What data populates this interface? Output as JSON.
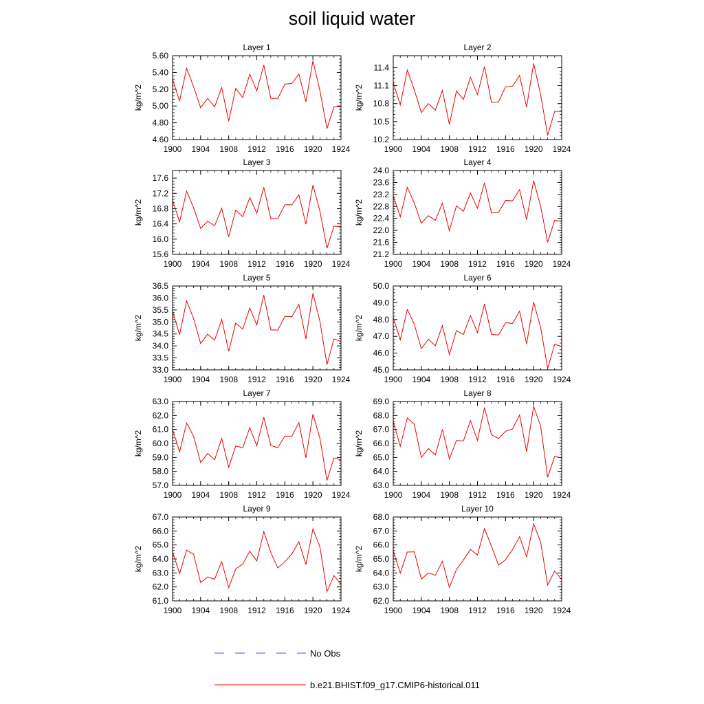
{
  "figure": {
    "title": "soil liquid water"
  },
  "legend": {
    "entries": [
      {
        "label": "No Obs",
        "style": "dashed",
        "color": "#4455cc"
      },
      {
        "label": "b.e21.BHIST.f09_g17.CMIP6-historical.011",
        "style": "solid",
        "color": "#ee0000"
      }
    ]
  },
  "chart_data": [
    {
      "type": "line",
      "title": "Layer 1",
      "ylabel": "kg/m^2",
      "ylim": [
        4.6,
        5.6
      ],
      "yticks": [
        4.6,
        4.8,
        5.0,
        5.2,
        5.4,
        5.6
      ],
      "ytick_labels": [
        "4.60",
        "4.80",
        "5.00",
        "5.20",
        "5.40",
        "5.60"
      ],
      "xlim": [
        1900,
        1924
      ],
      "xticks": [
        1900,
        1904,
        1908,
        1912,
        1916,
        1920,
        1924
      ],
      "xtick_labels": [
        "1900",
        "1904",
        "1908",
        "1912",
        "1916",
        "1920",
        "1924"
      ],
      "x": [
        1900,
        1901,
        1902,
        1903,
        1904,
        1905,
        1906,
        1907,
        1908,
        1909,
        1910,
        1911,
        1912,
        1913,
        1914,
        1915,
        1916,
        1917,
        1918,
        1919,
        1920,
        1921,
        1922,
        1923,
        1924
      ],
      "series": [
        {
          "name": "b.e21.BHIST.f09_g17.CMIP6-historical.011",
          "color": "#ee0000",
          "values": [
            5.32,
            5.06,
            5.45,
            5.23,
            4.98,
            5.09,
            4.99,
            5.22,
            4.82,
            5.21,
            5.1,
            5.38,
            5.18,
            5.49,
            5.09,
            5.09,
            5.26,
            5.27,
            5.38,
            5.05,
            5.54,
            5.18,
            4.73,
            4.99,
            4.99
          ]
        }
      ]
    },
    {
      "type": "line",
      "title": "Layer 2",
      "ylabel": "kg/m^2",
      "ylim": [
        10.2,
        11.6
      ],
      "yticks": [
        10.2,
        10.5,
        10.8,
        11.1,
        11.4
      ],
      "ytick_labels": [
        "10.2",
        "10.5",
        "10.8",
        "11.1",
        "11.4"
      ],
      "xlim": [
        1900,
        1924
      ],
      "xticks": [
        1900,
        1904,
        1908,
        1912,
        1916,
        1920,
        1924
      ],
      "xtick_labels": [
        "1900",
        "1904",
        "1908",
        "1912",
        "1916",
        "1920",
        "1924"
      ],
      "x": [
        1900,
        1901,
        1902,
        1903,
        1904,
        1905,
        1906,
        1907,
        1908,
        1909,
        1910,
        1911,
        1912,
        1913,
        1914,
        1915,
        1916,
        1917,
        1918,
        1919,
        1920,
        1921,
        1922,
        1923,
        1924
      ],
      "series": [
        {
          "name": "b.e21.BHIST.f09_g17.CMIP6-historical.011",
          "color": "#ee0000",
          "values": [
            11.15,
            10.78,
            11.36,
            11.03,
            10.65,
            10.8,
            10.69,
            11.02,
            10.45,
            11.01,
            10.87,
            11.24,
            10.95,
            11.42,
            10.82,
            10.83,
            11.08,
            11.09,
            11.27,
            10.74,
            11.47,
            10.95,
            10.27,
            10.67,
            10.67
          ]
        }
      ]
    },
    {
      "type": "line",
      "title": "Layer 3",
      "ylabel": "kg/m^2",
      "ylim": [
        15.6,
        17.8
      ],
      "yticks": [
        15.6,
        16.0,
        16.4,
        16.8,
        17.2,
        17.6
      ],
      "ytick_labels": [
        "15.6",
        "16.0",
        "16.4",
        "16.8",
        "17.2",
        "17.6"
      ],
      "xlim": [
        1900,
        1924
      ],
      "xticks": [
        1900,
        1904,
        1908,
        1912,
        1916,
        1920,
        1924
      ],
      "xtick_labels": [
        "1900",
        "1904",
        "1908",
        "1912",
        "1916",
        "1920",
        "1924"
      ],
      "x": [
        1900,
        1901,
        1902,
        1903,
        1904,
        1905,
        1906,
        1907,
        1908,
        1909,
        1910,
        1911,
        1912,
        1913,
        1914,
        1915,
        1916,
        1917,
        1918,
        1919,
        1920,
        1921,
        1922,
        1923,
        1924
      ],
      "series": [
        {
          "name": "b.e21.BHIST.f09_g17.CMIP6-historical.011",
          "color": "#ee0000",
          "values": [
            17.02,
            16.45,
            17.26,
            16.82,
            16.28,
            16.47,
            16.35,
            16.81,
            16.06,
            16.76,
            16.59,
            17.09,
            16.68,
            17.36,
            16.53,
            16.54,
            16.9,
            16.9,
            17.16,
            16.39,
            17.42,
            16.73,
            15.76,
            16.34,
            16.33
          ]
        }
      ]
    },
    {
      "type": "line",
      "title": "Layer 4",
      "ylabel": "kg/m^2",
      "ylim": [
        21.2,
        24.0
      ],
      "yticks": [
        21.2,
        21.6,
        22.0,
        22.4,
        22.8,
        23.2,
        23.6,
        24.0
      ],
      "ytick_labels": [
        "21.2",
        "21.6",
        "22.0",
        "22.4",
        "22.8",
        "23.2",
        "23.6",
        "24.0"
      ],
      "xlim": [
        1900,
        1924
      ],
      "xticks": [
        1900,
        1904,
        1908,
        1912,
        1916,
        1920,
        1924
      ],
      "xtick_labels": [
        "1900",
        "1904",
        "1908",
        "1912",
        "1916",
        "1920",
        "1924"
      ],
      "x": [
        1900,
        1901,
        1902,
        1903,
        1904,
        1905,
        1906,
        1907,
        1908,
        1909,
        1910,
        1911,
        1912,
        1913,
        1914,
        1915,
        1916,
        1917,
        1918,
        1919,
        1920,
        1921,
        1922,
        1923,
        1924
      ],
      "series": [
        {
          "name": "b.e21.BHIST.f09_g17.CMIP6-historical.011",
          "color": "#ee0000",
          "values": [
            23.15,
            22.45,
            23.44,
            22.91,
            22.24,
            22.49,
            22.34,
            22.91,
            21.99,
            22.82,
            22.64,
            23.25,
            22.74,
            23.59,
            22.58,
            22.6,
            23.0,
            22.99,
            23.36,
            22.36,
            23.66,
            22.8,
            21.6,
            22.34,
            22.3
          ]
        }
      ]
    },
    {
      "type": "line",
      "title": "Layer 5",
      "ylabel": "kg/m^2",
      "ylim": [
        33.0,
        36.5
      ],
      "yticks": [
        33.0,
        33.5,
        34.0,
        34.5,
        35.0,
        35.5,
        36.0,
        36.5
      ],
      "ytick_labels": [
        "33.0",
        "33.5",
        "34.0",
        "34.5",
        "35.0",
        "35.5",
        "36.0",
        "36.5"
      ],
      "xlim": [
        1900,
        1924
      ],
      "xticks": [
        1900,
        1904,
        1908,
        1912,
        1916,
        1920,
        1924
      ],
      "xtick_labels": [
        "1900",
        "1904",
        "1908",
        "1912",
        "1916",
        "1920",
        "1924"
      ],
      "x": [
        1900,
        1901,
        1902,
        1903,
        1904,
        1905,
        1906,
        1907,
        1908,
        1909,
        1910,
        1911,
        1912,
        1913,
        1914,
        1915,
        1916,
        1917,
        1918,
        1919,
        1920,
        1921,
        1922,
        1923,
        1924
      ],
      "series": [
        {
          "name": "b.e21.BHIST.f09_g17.CMIP6-historical.011",
          "color": "#ee0000",
          "values": [
            35.45,
            34.47,
            35.88,
            35.14,
            34.1,
            34.49,
            34.24,
            35.11,
            33.78,
            34.95,
            34.7,
            35.58,
            34.88,
            36.12,
            34.67,
            34.66,
            35.23,
            35.22,
            35.74,
            34.29,
            36.2,
            35.02,
            33.22,
            34.29,
            34.18
          ]
        }
      ]
    },
    {
      "type": "line",
      "title": "Layer 6",
      "ylabel": "kg/m^2",
      "ylim": [
        45.0,
        50.0
      ],
      "yticks": [
        45.0,
        46.0,
        47.0,
        48.0,
        49.0,
        50.0
      ],
      "ytick_labels": [
        "45.0",
        "46.0",
        "47.0",
        "48.0",
        "49.0",
        "50.0"
      ],
      "xlim": [
        1900,
        1924
      ],
      "xticks": [
        1900,
        1904,
        1908,
        1912,
        1916,
        1920,
        1924
      ],
      "xtick_labels": [
        "1900",
        "1904",
        "1908",
        "1912",
        "1916",
        "1920",
        "1924"
      ],
      "x": [
        1900,
        1901,
        1902,
        1903,
        1904,
        1905,
        1906,
        1907,
        1908,
        1909,
        1910,
        1911,
        1912,
        1913,
        1914,
        1915,
        1916,
        1917,
        1918,
        1919,
        1920,
        1921,
        1922,
        1923,
        1924
      ],
      "series": [
        {
          "name": "b.e21.BHIST.f09_g17.CMIP6-historical.011",
          "color": "#ee0000",
          "values": [
            48.12,
            46.79,
            48.6,
            47.72,
            46.26,
            46.83,
            46.43,
            47.64,
            45.91,
            47.34,
            47.11,
            48.24,
            47.22,
            48.93,
            47.11,
            47.08,
            47.81,
            47.77,
            48.5,
            46.54,
            49.04,
            47.53,
            45.09,
            46.52,
            46.4
          ]
        }
      ]
    },
    {
      "type": "line",
      "title": "Layer 7",
      "ylabel": "kg/m^2",
      "ylim": [
        57.0,
        63.0
      ],
      "yticks": [
        57.0,
        58.0,
        59.0,
        60.0,
        61.0,
        62.0,
        63.0
      ],
      "ytick_labels": [
        "57.0",
        "58.0",
        "59.0",
        "60.0",
        "61.0",
        "62.0",
        "63.0"
      ],
      "xlim": [
        1900,
        1924
      ],
      "xticks": [
        1900,
        1904,
        1908,
        1912,
        1916,
        1920,
        1924
      ],
      "xtick_labels": [
        "1900",
        "1904",
        "1908",
        "1912",
        "1916",
        "1920",
        "1924"
      ],
      "x": [
        1900,
        1901,
        1902,
        1903,
        1904,
        1905,
        1906,
        1907,
        1908,
        1909,
        1910,
        1911,
        1912,
        1913,
        1914,
        1915,
        1916,
        1917,
        1918,
        1919,
        1920,
        1921,
        1922,
        1923,
        1924
      ],
      "series": [
        {
          "name": "b.e21.BHIST.f09_g17.CMIP6-historical.011",
          "color": "#ee0000",
          "values": [
            61.0,
            59.4,
            61.46,
            60.51,
            58.64,
            59.28,
            58.84,
            60.36,
            58.29,
            59.83,
            59.68,
            61.13,
            59.83,
            61.88,
            59.86,
            59.7,
            60.52,
            60.52,
            61.49,
            58.97,
            62.1,
            60.36,
            57.35,
            58.97,
            58.82
          ]
        }
      ]
    },
    {
      "type": "line",
      "title": "Layer 8",
      "ylabel": "kg/m^2",
      "ylim": [
        63.0,
        69.0
      ],
      "yticks": [
        63.0,
        64.0,
        65.0,
        66.0,
        67.0,
        68.0,
        69.0
      ],
      "ytick_labels": [
        "63.0",
        "64.0",
        "65.0",
        "66.0",
        "67.0",
        "68.0",
        "69.0"
      ],
      "xlim": [
        1900,
        1924
      ],
      "xticks": [
        1900,
        1904,
        1908,
        1912,
        1916,
        1920,
        1924
      ],
      "xtick_labels": [
        "1900",
        "1904",
        "1908",
        "1912",
        "1916",
        "1920",
        "1924"
      ],
      "x": [
        1900,
        1901,
        1902,
        1903,
        1904,
        1905,
        1906,
        1907,
        1908,
        1909,
        1910,
        1911,
        1912,
        1913,
        1914,
        1915,
        1916,
        1917,
        1918,
        1919,
        1920,
        1921,
        1922,
        1923,
        1924
      ],
      "series": [
        {
          "name": "b.e21.BHIST.f09_g17.CMIP6-historical.011",
          "color": "#ee0000",
          "values": [
            67.56,
            65.8,
            67.83,
            67.36,
            65.0,
            65.63,
            65.18,
            67.01,
            64.89,
            66.21,
            66.18,
            67.63,
            66.22,
            68.56,
            66.61,
            66.35,
            66.87,
            67.04,
            68.03,
            65.41,
            68.65,
            67.23,
            63.58,
            65.08,
            64.95
          ]
        }
      ]
    },
    {
      "type": "line",
      "title": "Layer 9",
      "ylabel": "kg/m^2",
      "ylim": [
        61.0,
        67.0
      ],
      "yticks": [
        61.0,
        62.0,
        63.0,
        64.0,
        65.0,
        66.0,
        67.0
      ],
      "ytick_labels": [
        "61.0",
        "62.0",
        "63.0",
        "64.0",
        "65.0",
        "66.0",
        "67.0"
      ],
      "xlim": [
        1900,
        1924
      ],
      "xticks": [
        1900,
        1904,
        1908,
        1912,
        1916,
        1920,
        1924
      ],
      "xtick_labels": [
        "1900",
        "1904",
        "1908",
        "1912",
        "1916",
        "1920",
        "1924"
      ],
      "x": [
        1900,
        1901,
        1902,
        1903,
        1904,
        1905,
        1906,
        1907,
        1908,
        1909,
        1910,
        1911,
        1912,
        1913,
        1914,
        1915,
        1916,
        1917,
        1918,
        1919,
        1920,
        1921,
        1922,
        1923,
        1924
      ],
      "series": [
        {
          "name": "b.e21.BHIST.f09_g17.CMIP6-historical.011",
          "color": "#ee0000",
          "values": [
            64.5,
            62.96,
            64.63,
            64.33,
            62.31,
            62.71,
            62.55,
            63.82,
            61.95,
            63.28,
            63.64,
            64.55,
            63.85,
            65.95,
            64.46,
            63.35,
            63.8,
            64.36,
            65.23,
            63.6,
            66.15,
            64.85,
            61.65,
            62.81,
            62.18
          ]
        }
      ]
    },
    {
      "type": "line",
      "title": "Layer 10",
      "ylabel": "kg/m^2",
      "ylim": [
        62.0,
        68.0
      ],
      "yticks": [
        62.0,
        63.0,
        64.0,
        65.0,
        66.0,
        67.0,
        68.0
      ],
      "ytick_labels": [
        "62.0",
        "63.0",
        "64.0",
        "65.0",
        "66.0",
        "67.0",
        "68.0"
      ],
      "xlim": [
        1900,
        1924
      ],
      "xticks": [
        1900,
        1904,
        1908,
        1912,
        1916,
        1920,
        1924
      ],
      "xtick_labels": [
        "1900",
        "1904",
        "1908",
        "1912",
        "1916",
        "1920",
        "1924"
      ],
      "x": [
        1900,
        1901,
        1902,
        1903,
        1904,
        1905,
        1906,
        1907,
        1908,
        1909,
        1910,
        1911,
        1912,
        1913,
        1914,
        1915,
        1916,
        1917,
        1918,
        1919,
        1920,
        1921,
        1922,
        1923,
        1924
      ],
      "series": [
        {
          "name": "b.e21.BHIST.f09_g17.CMIP6-historical.011",
          "color": "#ee0000",
          "values": [
            65.55,
            63.99,
            65.49,
            65.51,
            63.56,
            64.0,
            63.83,
            64.83,
            62.96,
            64.24,
            64.93,
            65.68,
            65.27,
            67.17,
            65.9,
            64.56,
            64.94,
            65.67,
            66.59,
            65.15,
            67.51,
            66.2,
            63.13,
            64.14,
            63.52
          ]
        }
      ]
    }
  ]
}
